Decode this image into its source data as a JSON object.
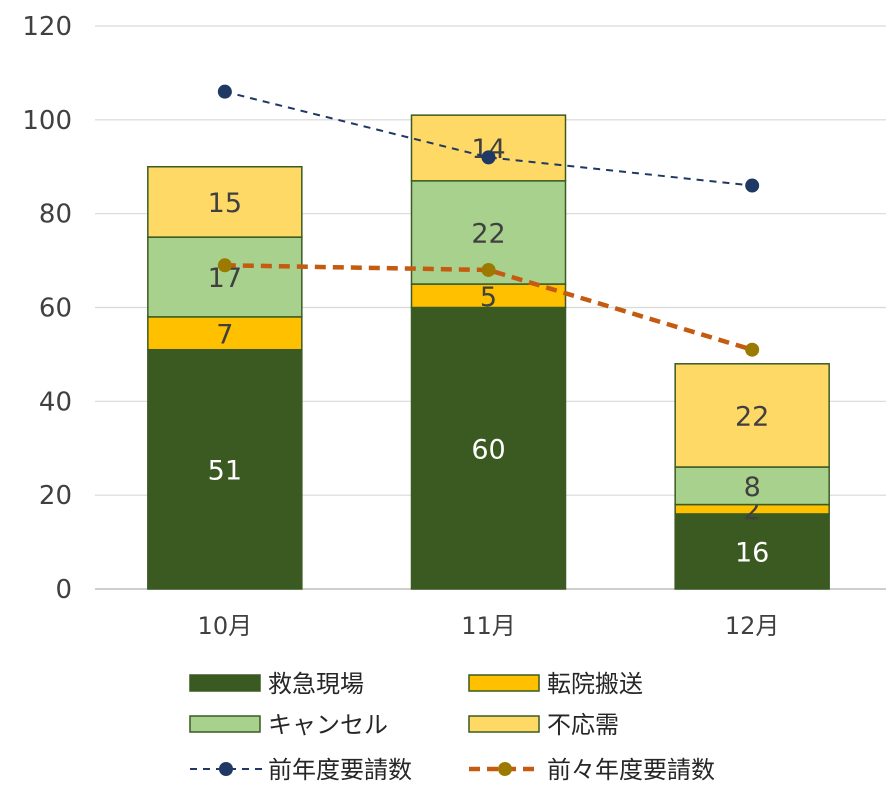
{
  "chart_data": {
    "type": "bar",
    "stacked": true,
    "categories": [
      "10月",
      "11月",
      "12月"
    ],
    "series": [
      {
        "name": "救急現場",
        "kind": "bar",
        "values": [
          51,
          60,
          16
        ],
        "color": "#3a5a22",
        "label_color": "#ffffff"
      },
      {
        "name": "転院搬送",
        "kind": "bar",
        "values": [
          7,
          5,
          2
        ],
        "color": "#ffc000",
        "label_color": "#404040"
      },
      {
        "name": "キャンセル",
        "kind": "bar",
        "values": [
          17,
          22,
          8
        ],
        "color": "#a9d18e",
        "label_color": "#404040"
      },
      {
        "name": "不応需",
        "kind": "bar",
        "values": [
          15,
          14,
          22
        ],
        "color": "#ffd966",
        "label_color": "#404040"
      },
      {
        "name": "前年度要請数",
        "kind": "line",
        "values": [
          106,
          92,
          86
        ],
        "color": "#1f3864",
        "line_style": "dashed-thin"
      },
      {
        "name": "前々年度要請数",
        "kind": "line",
        "values": [
          69,
          68,
          51
        ],
        "color": "#c55a11",
        "marker_color": "#9c7a00",
        "line_style": "dashed-thick"
      }
    ],
    "ylim": [
      0,
      120
    ],
    "yticks": [
      "0",
      "20",
      "40",
      "60",
      "80",
      "100",
      "120"
    ],
    "grid": true,
    "legend_position": "bottom",
    "bar_edge_color": "#3a5a22"
  }
}
